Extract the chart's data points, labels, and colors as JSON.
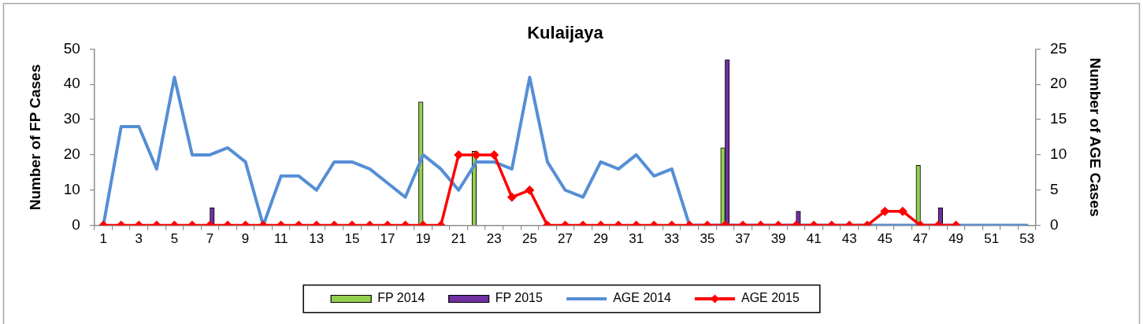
{
  "chart_data": {
    "type": "bar",
    "title": "Kulaijaya",
    "ylabel": "Number of FP Cases",
    "y2label": "Number of AGE Cases",
    "x": [
      1,
      2,
      3,
      4,
      5,
      6,
      7,
      8,
      9,
      10,
      11,
      12,
      13,
      14,
      15,
      16,
      17,
      18,
      19,
      20,
      21,
      22,
      23,
      24,
      25,
      26,
      27,
      28,
      29,
      30,
      31,
      32,
      33,
      34,
      35,
      36,
      37,
      38,
      39,
      40,
      41,
      42,
      43,
      44,
      45,
      46,
      47,
      48,
      49,
      50,
      51,
      52,
      53
    ],
    "series": [
      {
        "name": "FP 2014",
        "color": "#92d050",
        "values": [
          null,
          null,
          null,
          null,
          null,
          null,
          null,
          null,
          null,
          null,
          null,
          null,
          null,
          null,
          null,
          null,
          null,
          null,
          35,
          null,
          null,
          21,
          null,
          null,
          null,
          null,
          null,
          null,
          null,
          null,
          null,
          null,
          null,
          null,
          null,
          22,
          null,
          null,
          null,
          null,
          null,
          null,
          null,
          null,
          null,
          null,
          17,
          null,
          null,
          null,
          null,
          null,
          null
        ]
      },
      {
        "name": "FP 2015",
        "color": "#7030a0",
        "values": [
          null,
          null,
          null,
          null,
          null,
          null,
          5,
          null,
          null,
          null,
          null,
          null,
          null,
          null,
          null,
          null,
          null,
          null,
          null,
          null,
          null,
          null,
          null,
          null,
          null,
          null,
          null,
          null,
          null,
          null,
          null,
          null,
          null,
          null,
          null,
          47,
          null,
          null,
          null,
          4,
          null,
          null,
          null,
          null,
          null,
          null,
          null,
          5,
          null,
          null,
          null,
          null,
          null
        ]
      },
      {
        "name": "AGE 2014",
        "type": "line",
        "axis": "y2",
        "color": "#558ed5",
        "marker": "none",
        "values": [
          0,
          14,
          14,
          8,
          21,
          10,
          10,
          11,
          9,
          0,
          7,
          7,
          5,
          9,
          9,
          8,
          6,
          4,
          10,
          8,
          5,
          9,
          9,
          8,
          21,
          9,
          5,
          4,
          9,
          8,
          10,
          7,
          8,
          0,
          0,
          0,
          0,
          0,
          0,
          0,
          0,
          0,
          0,
          0,
          0,
          0,
          0,
          0,
          0,
          0,
          0,
          0,
          0
        ]
      },
      {
        "name": "AGE 2015",
        "type": "line",
        "axis": "y2",
        "color": "#ff0000",
        "marker": "diamond",
        "values": [
          0,
          0,
          0,
          0,
          0,
          0,
          0,
          0,
          0,
          0,
          0,
          0,
          0,
          0,
          0,
          0,
          0,
          0,
          0,
          0,
          10,
          10,
          10,
          4,
          5,
          0,
          0,
          0,
          0,
          0,
          0,
          0,
          0,
          0,
          0,
          0,
          0,
          0,
          0,
          0,
          0,
          0,
          0,
          0,
          2,
          2,
          0,
          0,
          0,
          null,
          null,
          null,
          null
        ]
      }
    ],
    "xlim": [
      0.5,
      53.5
    ],
    "xticks": [
      {
        "value": 0.5,
        "label": null
      },
      1,
      {
        "value": 1.5,
        "label": null
      },
      {
        "value": 2.5,
        "label": null
      },
      3,
      {
        "value": 3.5,
        "label": null
      },
      {
        "value": 4.5,
        "label": null
      },
      5,
      {
        "value": 5.5,
        "label": null
      },
      {
        "value": 6.5,
        "label": null
      },
      7,
      {
        "value": 7.5,
        "label": null
      },
      {
        "value": 8.5,
        "label": null
      },
      9,
      {
        "value": 9.5,
        "label": null
      },
      {
        "value": 10.5,
        "label": null
      },
      11,
      {
        "value": 11.5,
        "label": null
      },
      {
        "value": 12.5,
        "label": null
      },
      13,
      {
        "value": 13.5,
        "label": null
      },
      {
        "value": 14.5,
        "label": null
      },
      15,
      {
        "value": 15.5,
        "label": null
      },
      {
        "value": 16.5,
        "label": null
      },
      17,
      {
        "value": 17.5,
        "label": null
      },
      {
        "value": 18.5,
        "label": null
      },
      19,
      {
        "value": 19.5,
        "label": null
      },
      {
        "value": 20.5,
        "label": null
      },
      21,
      {
        "value": 21.5,
        "label": null
      },
      {
        "value": 22.5,
        "label": null
      },
      23,
      {
        "value": 23.5,
        "label": null
      },
      {
        "value": 24.5,
        "label": null
      },
      25,
      {
        "value": 25.5,
        "label": null
      },
      {
        "value": 26.5,
        "label": null
      },
      27,
      {
        "value": 27.5,
        "label": null
      },
      {
        "value": 28.5,
        "label": null
      },
      29,
      {
        "value": 29.5,
        "label": null
      },
      {
        "value": 30.5,
        "label": null
      },
      31,
      {
        "value": 31.5,
        "label": null
      },
      {
        "value": 32.5,
        "label": null
      },
      33,
      {
        "value": 33.5,
        "label": null
      },
      {
        "value": 34.5,
        "label": null
      },
      35,
      {
        "value": 35.5,
        "label": null
      },
      {
        "value": 36.5,
        "label": null
      },
      37,
      {
        "value": 37.5,
        "label": null
      },
      {
        "value": 38.5,
        "label": null
      },
      39,
      {
        "value": 39.5,
        "label": null
      },
      {
        "value": 40.5,
        "label": null
      },
      41,
      {
        "value": 41.5,
        "label": null
      },
      {
        "value": 42.5,
        "label": null
      },
      43,
      {
        "value": 43.5,
        "label": null
      },
      {
        "value": 44.5,
        "label": null
      },
      45,
      {
        "value": 45.5,
        "label": null
      },
      {
        "value": 46.5,
        "label": null
      },
      47,
      {
        "value": 47.5,
        "label": null
      },
      {
        "value": 48.5,
        "label": null
      },
      49,
      {
        "value": 49.5,
        "label": null
      },
      {
        "value": 50.5,
        "label": null
      },
      51,
      {
        "value": 51.5,
        "label": null
      },
      {
        "value": 52.5,
        "label": null
      },
      53,
      {
        "value": 53.5,
        "label": null
      }
    ],
    "ylim": [
      0,
      50
    ],
    "yticks": [
      0,
      10,
      20,
      30,
      40,
      50
    ],
    "y2lim": [
      0,
      25
    ],
    "y2ticks": [
      0,
      5,
      10,
      15,
      20,
      25
    ],
    "grid": false,
    "legend": "bottom"
  }
}
